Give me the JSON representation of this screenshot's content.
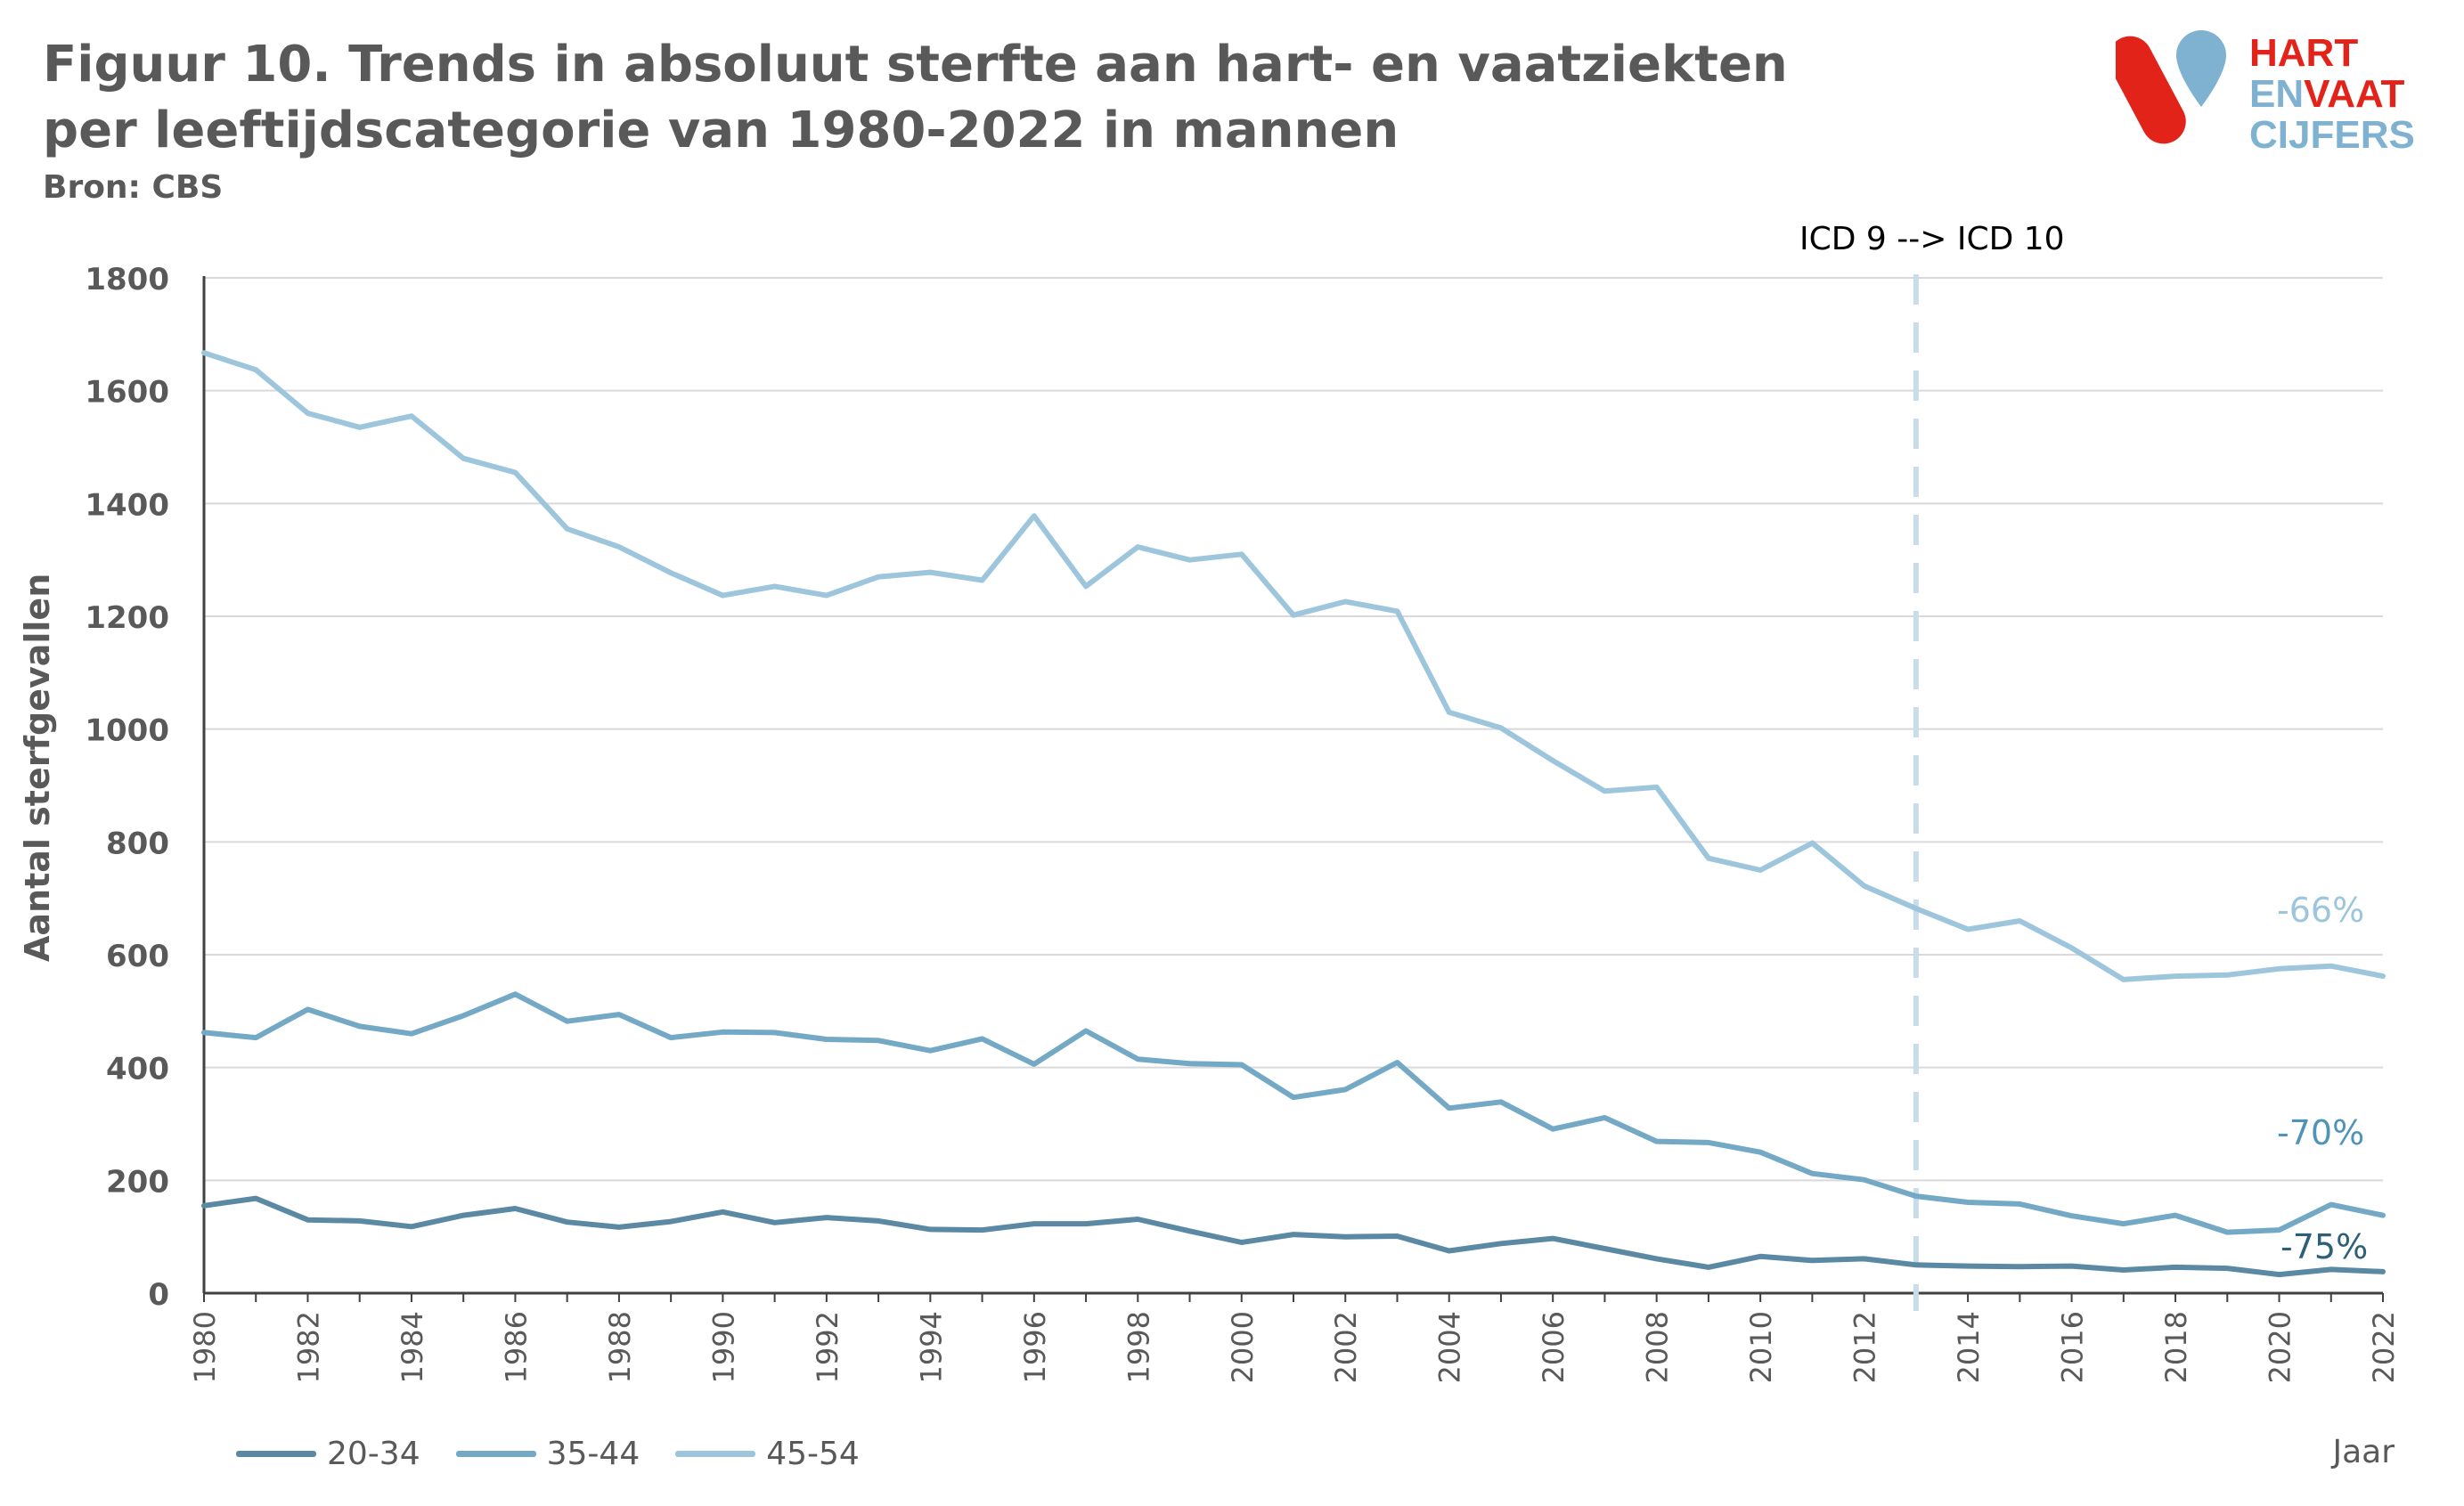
{
  "title": "Figuur 10. Trends in absoluut sterfte aan hart- en vaatziekten per leeftijdscategorie van 1980-2022 in mannen",
  "source": "Bron: CBS",
  "logo": {
    "line1": "HART",
    "line2a": "EN",
    "line2b": "VAAT",
    "line3": "CIJFERS"
  },
  "colors": {
    "red": "#e2231a",
    "blue": "#7fb2d1",
    "series_20_34": "#5b89a4",
    "series_35_44": "#74a9c6",
    "series_45_54": "#9dc6dd",
    "grid": "#d9d9d9",
    "axis": "#404040"
  },
  "chart_data": {
    "type": "line",
    "ylabel": "Aantal sterfgevallen",
    "xlabel": "Jaar",
    "ylim": [
      0,
      1800
    ],
    "yticks": [
      0,
      200,
      400,
      600,
      800,
      1000,
      1200,
      1400,
      1600,
      1800
    ],
    "x": [
      1980,
      1981,
      1982,
      1983,
      1984,
      1985,
      1986,
      1987,
      1988,
      1989,
      1990,
      1991,
      1992,
      1993,
      1994,
      1995,
      1996,
      1997,
      1998,
      1999,
      2000,
      2001,
      2002,
      2003,
      2004,
      2005,
      2006,
      2007,
      2008,
      2009,
      2010,
      2011,
      2012,
      2013,
      2014,
      2015,
      2016,
      2017,
      2018,
      2019,
      2020,
      2021,
      2022
    ],
    "xticks": [
      1980,
      1982,
      1984,
      1986,
      1988,
      1990,
      1992,
      1994,
      1996,
      1998,
      2000,
      2002,
      2004,
      2006,
      2008,
      2010,
      2012,
      2014,
      2016,
      2018,
      2020,
      2022
    ],
    "grid": true,
    "legend_position": "bottom-left",
    "series": [
      {
        "name": "20-34",
        "color": "#5b89a4",
        "end_label": "-75%",
        "values": [
          155,
          168,
          130,
          128,
          118,
          138,
          150,
          126,
          117,
          127,
          144,
          125,
          134,
          128,
          113,
          112,
          123,
          123,
          131,
          110,
          90,
          104,
          100,
          101,
          75,
          88,
          97,
          79,
          61,
          46,
          65,
          58,
          61,
          50,
          48,
          47,
          48,
          41,
          46,
          44,
          33,
          42,
          38
        ]
      },
      {
        "name": "35-44",
        "color": "#74a9c6",
        "end_label": "-70%",
        "values": [
          462,
          453,
          503,
          473,
          460,
          492,
          530,
          482,
          494,
          453,
          463,
          462,
          450,
          448,
          430,
          451,
          406,
          465,
          415,
          407,
          405,
          347,
          361,
          409,
          328,
          339,
          291,
          311,
          269,
          267,
          250,
          212,
          201,
          172,
          161,
          158,
          137,
          123,
          138,
          108,
          112,
          157,
          138
        ]
      },
      {
        "name": "45-54",
        "color": "#9dc6dd",
        "end_label": "-66%",
        "values": [
          1667,
          1637,
          1560,
          1535,
          1555,
          1480,
          1455,
          1355,
          1323,
          1277,
          1237,
          1253,
          1237,
          1270,
          1278,
          1264,
          1378,
          1253,
          1323,
          1300,
          1310,
          1202,
          1226,
          1209,
          1030,
          1002,
          944,
          890,
          897,
          771,
          750,
          798,
          722,
          682,
          645,
          660,
          612,
          556,
          562,
          564,
          575,
          580,
          562
        ]
      }
    ],
    "annotation": {
      "text": "ICD 9  --> ICD 10",
      "x": 2013
    }
  }
}
